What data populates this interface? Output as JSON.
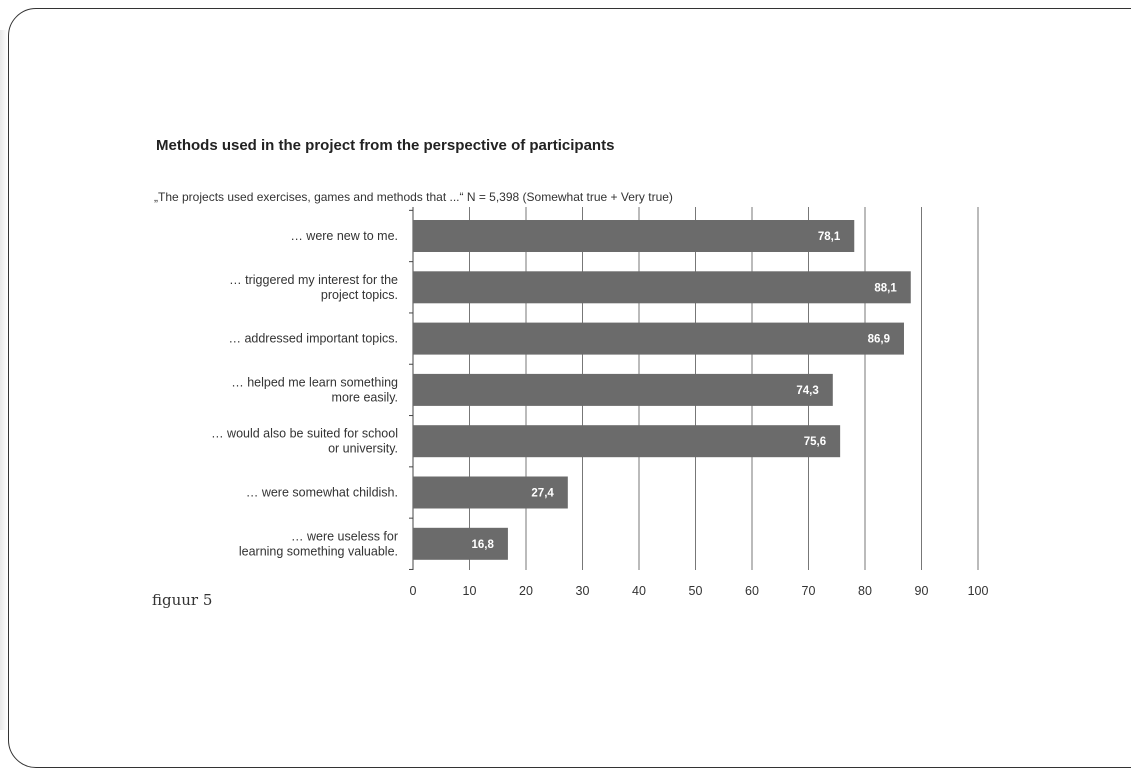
{
  "title": "Methods used in the project from the perspective of participants",
  "subtitle": "„The projects used exercises, games and methods that ...“ N = 5,398 (Somewhat true + Very true)",
  "figure_label": "figuur 5",
  "colors": {
    "bar": "#6b6b6b",
    "grid": "#777777",
    "text": "#333333"
  },
  "chart_data": {
    "type": "bar",
    "orientation": "horizontal",
    "title": "Methods used in the project from the perspective of participants",
    "subtitle": "„The projects used exercises, games and methods that ...“ N = 5,398 (Somewhat true + Very true)",
    "categories": [
      [
        "… were new to me."
      ],
      [
        "… triggered my interest for the",
        "project topics."
      ],
      [
        "… addressed important topics."
      ],
      [
        "… helped me learn something",
        "more easily."
      ],
      [
        "… would also be suited for school",
        "or university."
      ],
      [
        "… were somewhat childish."
      ],
      [
        "… were useless for",
        "learning something valuable."
      ]
    ],
    "values": [
      78.1,
      88.1,
      86.9,
      74.3,
      75.6,
      27.4,
      16.8
    ],
    "value_labels": [
      "78,1",
      "88,1",
      "86,9",
      "74,3",
      "75,6",
      "27,4",
      "16,8"
    ],
    "xlim": [
      0,
      100
    ],
    "xticks": [
      0,
      10,
      20,
      30,
      40,
      50,
      60,
      70,
      80,
      90,
      100
    ],
    "grid": true,
    "legend": "none"
  }
}
